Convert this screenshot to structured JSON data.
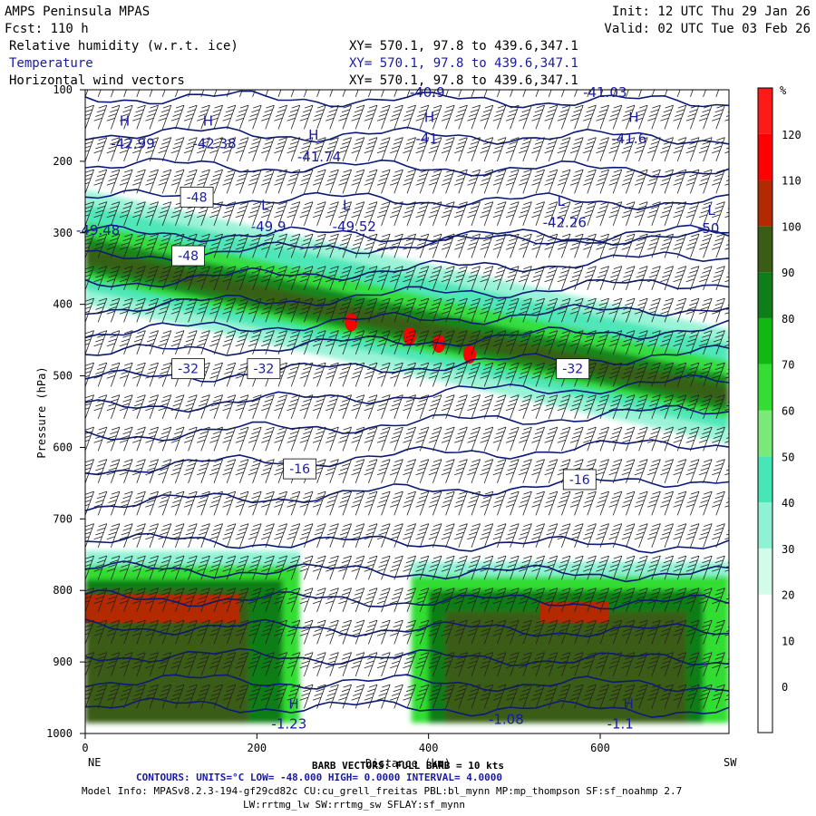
{
  "header": {
    "title": "AMPS Peninsula MPAS",
    "fcst": "Fcst:  110 h",
    "init": "Init: 12 UTC Thu 29 Jan 26",
    "valid": "Valid: 02 UTC Tue 03 Feb 26",
    "fields": [
      {
        "name": "Relative humidity (w.r.t. ice)",
        "xy": "XY= 570.1, 97.8 to 439.6,347.1"
      },
      {
        "name": "Temperature",
        "xy": "XY= 570.1, 97.8 to 439.6,347.1"
      },
      {
        "name": "Horizontal wind vectors",
        "xy": "XY= 570.1, 97.8 to 439.6,347.1"
      }
    ]
  },
  "axes": {
    "ylabel": "Pressure (hPa)",
    "xlabel": "Distance (km)",
    "left_end": "NE",
    "right_end": "SW"
  },
  "footer": {
    "barb": "BARB VECTORS:  FULL BARB = 10 kts",
    "contours": "CONTOURS:  UNITS=°C  LOW= -48.000      HIGH=  0.0000      INTERVAL=   4.0000",
    "model_info": "Model Info: MPASv8.2.3-194-gf29cd82c CU:cu_grell_freitas PBL:bl_mynn MP:mp_thompson SF:sf_noahmp 2.7",
    "model_info2": "LW:rrtmg_lw SW:rrtmg_sw SFLAY:sf_mynn"
  },
  "colorbar": {
    "unit": "%",
    "levels": [
      0,
      10,
      20,
      30,
      40,
      50,
      60,
      70,
      80,
      90,
      100,
      110,
      120
    ],
    "colors": [
      "#ffffff",
      "#ffffff",
      "#ffffff",
      "#d2fbea",
      "#8ff2d4",
      "#46e6b6",
      "#7be87a",
      "#33dd33",
      "#11b811",
      "#0f7d19",
      "#3b5c14",
      "#b32a00",
      "#ff0000",
      "#ff1a1a"
    ]
  },
  "chart_data": {
    "type": "heatmap",
    "title": "Relative humidity (w.r.t. ice) / Temperature / Horizontal wind vectors",
    "xlabel": "Distance (km)",
    "ylabel": "Pressure (hPa)",
    "xlim": [
      0,
      750
    ],
    "ylim": [
      1000,
      100
    ],
    "x_ticks": [
      0,
      200,
      400,
      600
    ],
    "y_ticks": [
      100,
      200,
      300,
      400,
      500,
      600,
      700,
      800,
      900,
      1000
    ],
    "rh_units": "%",
    "temperature_contours": {
      "units": "°C",
      "low": -48.0,
      "high": 0.0,
      "interval": 4.0,
      "labels": [
        {
          "text": "-48",
          "x": 130,
          "p": 250
        },
        {
          "text": "-48",
          "x": 120,
          "p": 332
        },
        {
          "text": "-32",
          "x": 120,
          "p": 490
        },
        {
          "text": "-32",
          "x": 208,
          "p": 490
        },
        {
          "text": "-32",
          "x": 568,
          "p": 490
        },
        {
          "text": "-16",
          "x": 250,
          "p": 630
        },
        {
          "text": "-16",
          "x": 576,
          "p": 645
        }
      ]
    },
    "extrema_labels": [
      {
        "text": "H",
        "x": 40,
        "p": 150
      },
      {
        "text": "-42.99",
        "x": 30,
        "p": 182
      },
      {
        "text": "H",
        "x": 137,
        "p": 150
      },
      {
        "text": "-42.38",
        "x": 125,
        "p": 182
      },
      {
        "text": "H",
        "x": 260,
        "p": 170
      },
      {
        "text": "-41.74",
        "x": 247,
        "p": 200
      },
      {
        "text": "H",
        "x": 395,
        "p": 145
      },
      {
        "text": "-41",
        "x": 385,
        "p": 175
      },
      {
        "text": "H",
        "x": 633,
        "p": 145
      },
      {
        "text": "-41.6",
        "x": 613,
        "p": 175
      },
      {
        "text": "L",
        "x": 205,
        "p": 268
      },
      {
        "text": "-49.9",
        "x": 193,
        "p": 298
      },
      {
        "text": "L",
        "x": 300,
        "p": 268
      },
      {
        "text": "-49.52",
        "x": 288,
        "p": 298
      },
      {
        "text": "L",
        "x": 550,
        "p": 262
      },
      {
        "text": "-42.26",
        "x": 533,
        "p": 292
      },
      {
        "text": "L",
        "x": 725,
        "p": 275
      },
      {
        "text": "-50",
        "x": 713,
        "p": 300
      },
      {
        "text": "-49.48",
        "x": -15,
        "p": 303
      },
      {
        "text": "-40.9",
        "x": 378,
        "p": 110
      },
      {
        "text": "-41.03",
        "x": 580,
        "p": 110
      },
      {
        "text": "H",
        "x": 237,
        "p": 965
      },
      {
        "text": "-1.23",
        "x": 217,
        "p": 993
      },
      {
        "text": "-1.1",
        "x": 608,
        "p": 993
      },
      {
        "text": "H",
        "x": 627,
        "p": 965
      },
      {
        "text": "-1.08",
        "x": 470,
        "p": 987
      }
    ]
  }
}
